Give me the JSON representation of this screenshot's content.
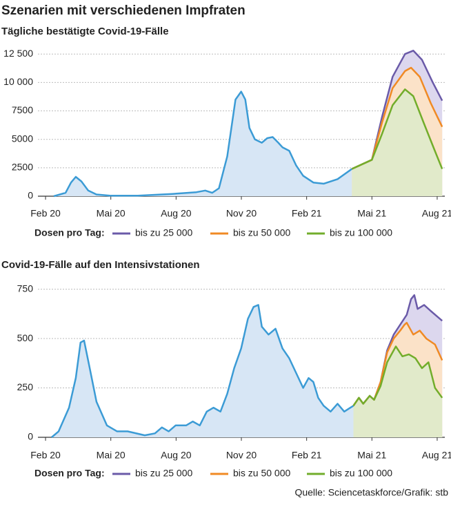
{
  "title": "Szenarien mit verschiedenen Impfraten",
  "source": "Quelle: Sciencetaskforce/Grafik: stb",
  "chart_data": [
    {
      "type": "area",
      "title": "Tägliche bestätigte Covid-19-Fälle",
      "legend_title": "Dosen pro Tag:",
      "xlim": [
        -0.35,
        18.35
      ],
      "xticks": [
        {
          "value": 0,
          "label": "Feb 20"
        },
        {
          "value": 3,
          "label": "Mai 20"
        },
        {
          "value": 6,
          "label": "Aug 20"
        },
        {
          "value": 9,
          "label": "Nov 20"
        },
        {
          "value": 12,
          "label": "Feb 21"
        },
        {
          "value": 15,
          "label": "Mai 21"
        },
        {
          "value": 18,
          "label": "Aug 21"
        }
      ],
      "ylim": [
        0,
        13000
      ],
      "yticks": [
        0,
        2500,
        5000,
        7500,
        {
          "value": 10000,
          "label": "10 000"
        },
        {
          "value": 12500,
          "label": "12 500"
        }
      ],
      "grid": true,
      "series": [
        {
          "color": "#3b9bd5",
          "fill": "#d7e6f5",
          "x": [
            0.38,
            0.92,
            1.17,
            1.39,
            1.65,
            1.96,
            2.34,
            2.97,
            4.24,
            5.82,
            6.93,
            7.34,
            7.66,
            7.97,
            8.35,
            8.73,
            8.99,
            9.18,
            9.37,
            9.62,
            9.94,
            10.19,
            10.44,
            10.7,
            10.89,
            11.2,
            11.52,
            11.84,
            12.31,
            12.78,
            13.42,
            14.08
          ],
          "values": [
            0,
            300,
            1200,
            1700,
            1300,
            500,
            150,
            50,
            50,
            200,
            350,
            500,
            300,
            700,
            3500,
            8500,
            9200,
            8500,
            6000,
            5000,
            4700,
            5100,
            5200,
            4700,
            4300,
            4000,
            2700,
            1800,
            1200,
            1100,
            1500,
            2400
          ]
        },
        {
          "name": "bis zu 25 000",
          "color": "#6a5aa8",
          "fill": "#dcd7ee",
          "x": [
            14.08,
            15.0,
            15.47,
            15.95,
            16.52,
            16.9,
            17.3,
            17.8,
            18.23
          ],
          "values": [
            2400,
            3200,
            7000,
            10500,
            12500,
            12800,
            12000,
            10000,
            8400
          ]
        },
        {
          "name": "bis zu 50 000",
          "color": "#f08a24",
          "fill": "#fbe2c8",
          "x": [
            14.08,
            15.0,
            15.47,
            15.95,
            16.52,
            16.8,
            17.2,
            17.7,
            18.23
          ],
          "values": [
            2400,
            3200,
            6500,
            9500,
            11000,
            11300,
            10500,
            8200,
            6100
          ]
        },
        {
          "name": "bis zu 100 000",
          "color": "#72ad2b",
          "fill": "#e1eaca",
          "x": [
            14.08,
            15.0,
            15.47,
            15.95,
            16.52,
            16.9,
            17.37,
            17.85,
            18.23
          ],
          "values": [
            2400,
            3200,
            5500,
            8000,
            9400,
            8800,
            6500,
            4200,
            2400
          ]
        }
      ]
    },
    {
      "type": "area",
      "title": "Covid-19-Fälle auf den Intensivstationen",
      "legend_title": "Dosen pro Tag:",
      "xlim": [
        -0.35,
        18.35
      ],
      "xticks": [
        {
          "value": 0,
          "label": "Feb 20"
        },
        {
          "value": 3,
          "label": "Mai 20"
        },
        {
          "value": 6,
          "label": "Aug 20"
        },
        {
          "value": 9,
          "label": "Nov 20"
        },
        {
          "value": 12,
          "label": "Feb 21"
        },
        {
          "value": 15,
          "label": "Mai 21"
        },
        {
          "value": 18,
          "label": "Aug 21"
        }
      ],
      "ylim": [
        0,
        780
      ],
      "yticks": [
        0,
        250,
        500,
        750
      ],
      "grid": true,
      "series": [
        {
          "color": "#3b9bd5",
          "fill": "#d7e6f5",
          "x": [
            0.28,
            0.6,
            1.08,
            1.39,
            1.61,
            1.77,
            2.03,
            2.34,
            2.82,
            3.29,
            3.77,
            4.56,
            5.03,
            5.35,
            5.66,
            5.98,
            6.46,
            6.77,
            7.09,
            7.41,
            7.72,
            8.04,
            8.35,
            8.67,
            8.99,
            9.3,
            9.56,
            9.78,
            9.94,
            10.25,
            10.57,
            10.89,
            11.2,
            11.84,
            12.09,
            12.31,
            12.53,
            12.78,
            13.1,
            13.42,
            13.73,
            14.15
          ],
          "values": [
            0,
            30,
            150,
            300,
            480,
            490,
            350,
            180,
            60,
            30,
            30,
            10,
            20,
            50,
            30,
            60,
            60,
            80,
            60,
            130,
            150,
            130,
            220,
            350,
            450,
            600,
            660,
            670,
            560,
            520,
            550,
            450,
            400,
            250,
            300,
            280,
            200,
            160,
            130,
            170,
            130,
            160
          ]
        },
        {
          "name": "bis zu 25 000",
          "color": "#6a5aa8",
          "fill": "#dcd7ee",
          "x": [
            14.15,
            14.4,
            14.6,
            14.9,
            15.1,
            15.4,
            15.7,
            16.0,
            16.3,
            16.6,
            16.8,
            16.95,
            17.1,
            17.4,
            17.7,
            18.23
          ],
          "values": [
            160,
            200,
            170,
            210,
            190,
            280,
            440,
            520,
            570,
            620,
            700,
            720,
            650,
            670,
            640,
            590
          ]
        },
        {
          "name": "bis zu 50 000",
          "color": "#f08a24",
          "fill": "#fbe2c8",
          "x": [
            14.15,
            14.4,
            14.6,
            14.9,
            15.1,
            15.4,
            15.7,
            16.0,
            16.3,
            16.5,
            16.6,
            16.9,
            17.2,
            17.5,
            17.9,
            18.23
          ],
          "values": [
            160,
            200,
            170,
            210,
            190,
            280,
            430,
            500,
            540,
            570,
            580,
            520,
            540,
            500,
            470,
            390
          ]
        },
        {
          "name": "bis zu 100 000",
          "color": "#72ad2b",
          "fill": "#e1eaca",
          "x": [
            14.15,
            14.4,
            14.6,
            14.9,
            15.1,
            15.4,
            15.7,
            15.9,
            16.1,
            16.4,
            16.7,
            17.0,
            17.3,
            17.6,
            17.9,
            18.23
          ],
          "values": [
            160,
            200,
            170,
            210,
            190,
            260,
            380,
            420,
            460,
            410,
            420,
            400,
            350,
            380,
            250,
            200
          ]
        }
      ]
    }
  ]
}
